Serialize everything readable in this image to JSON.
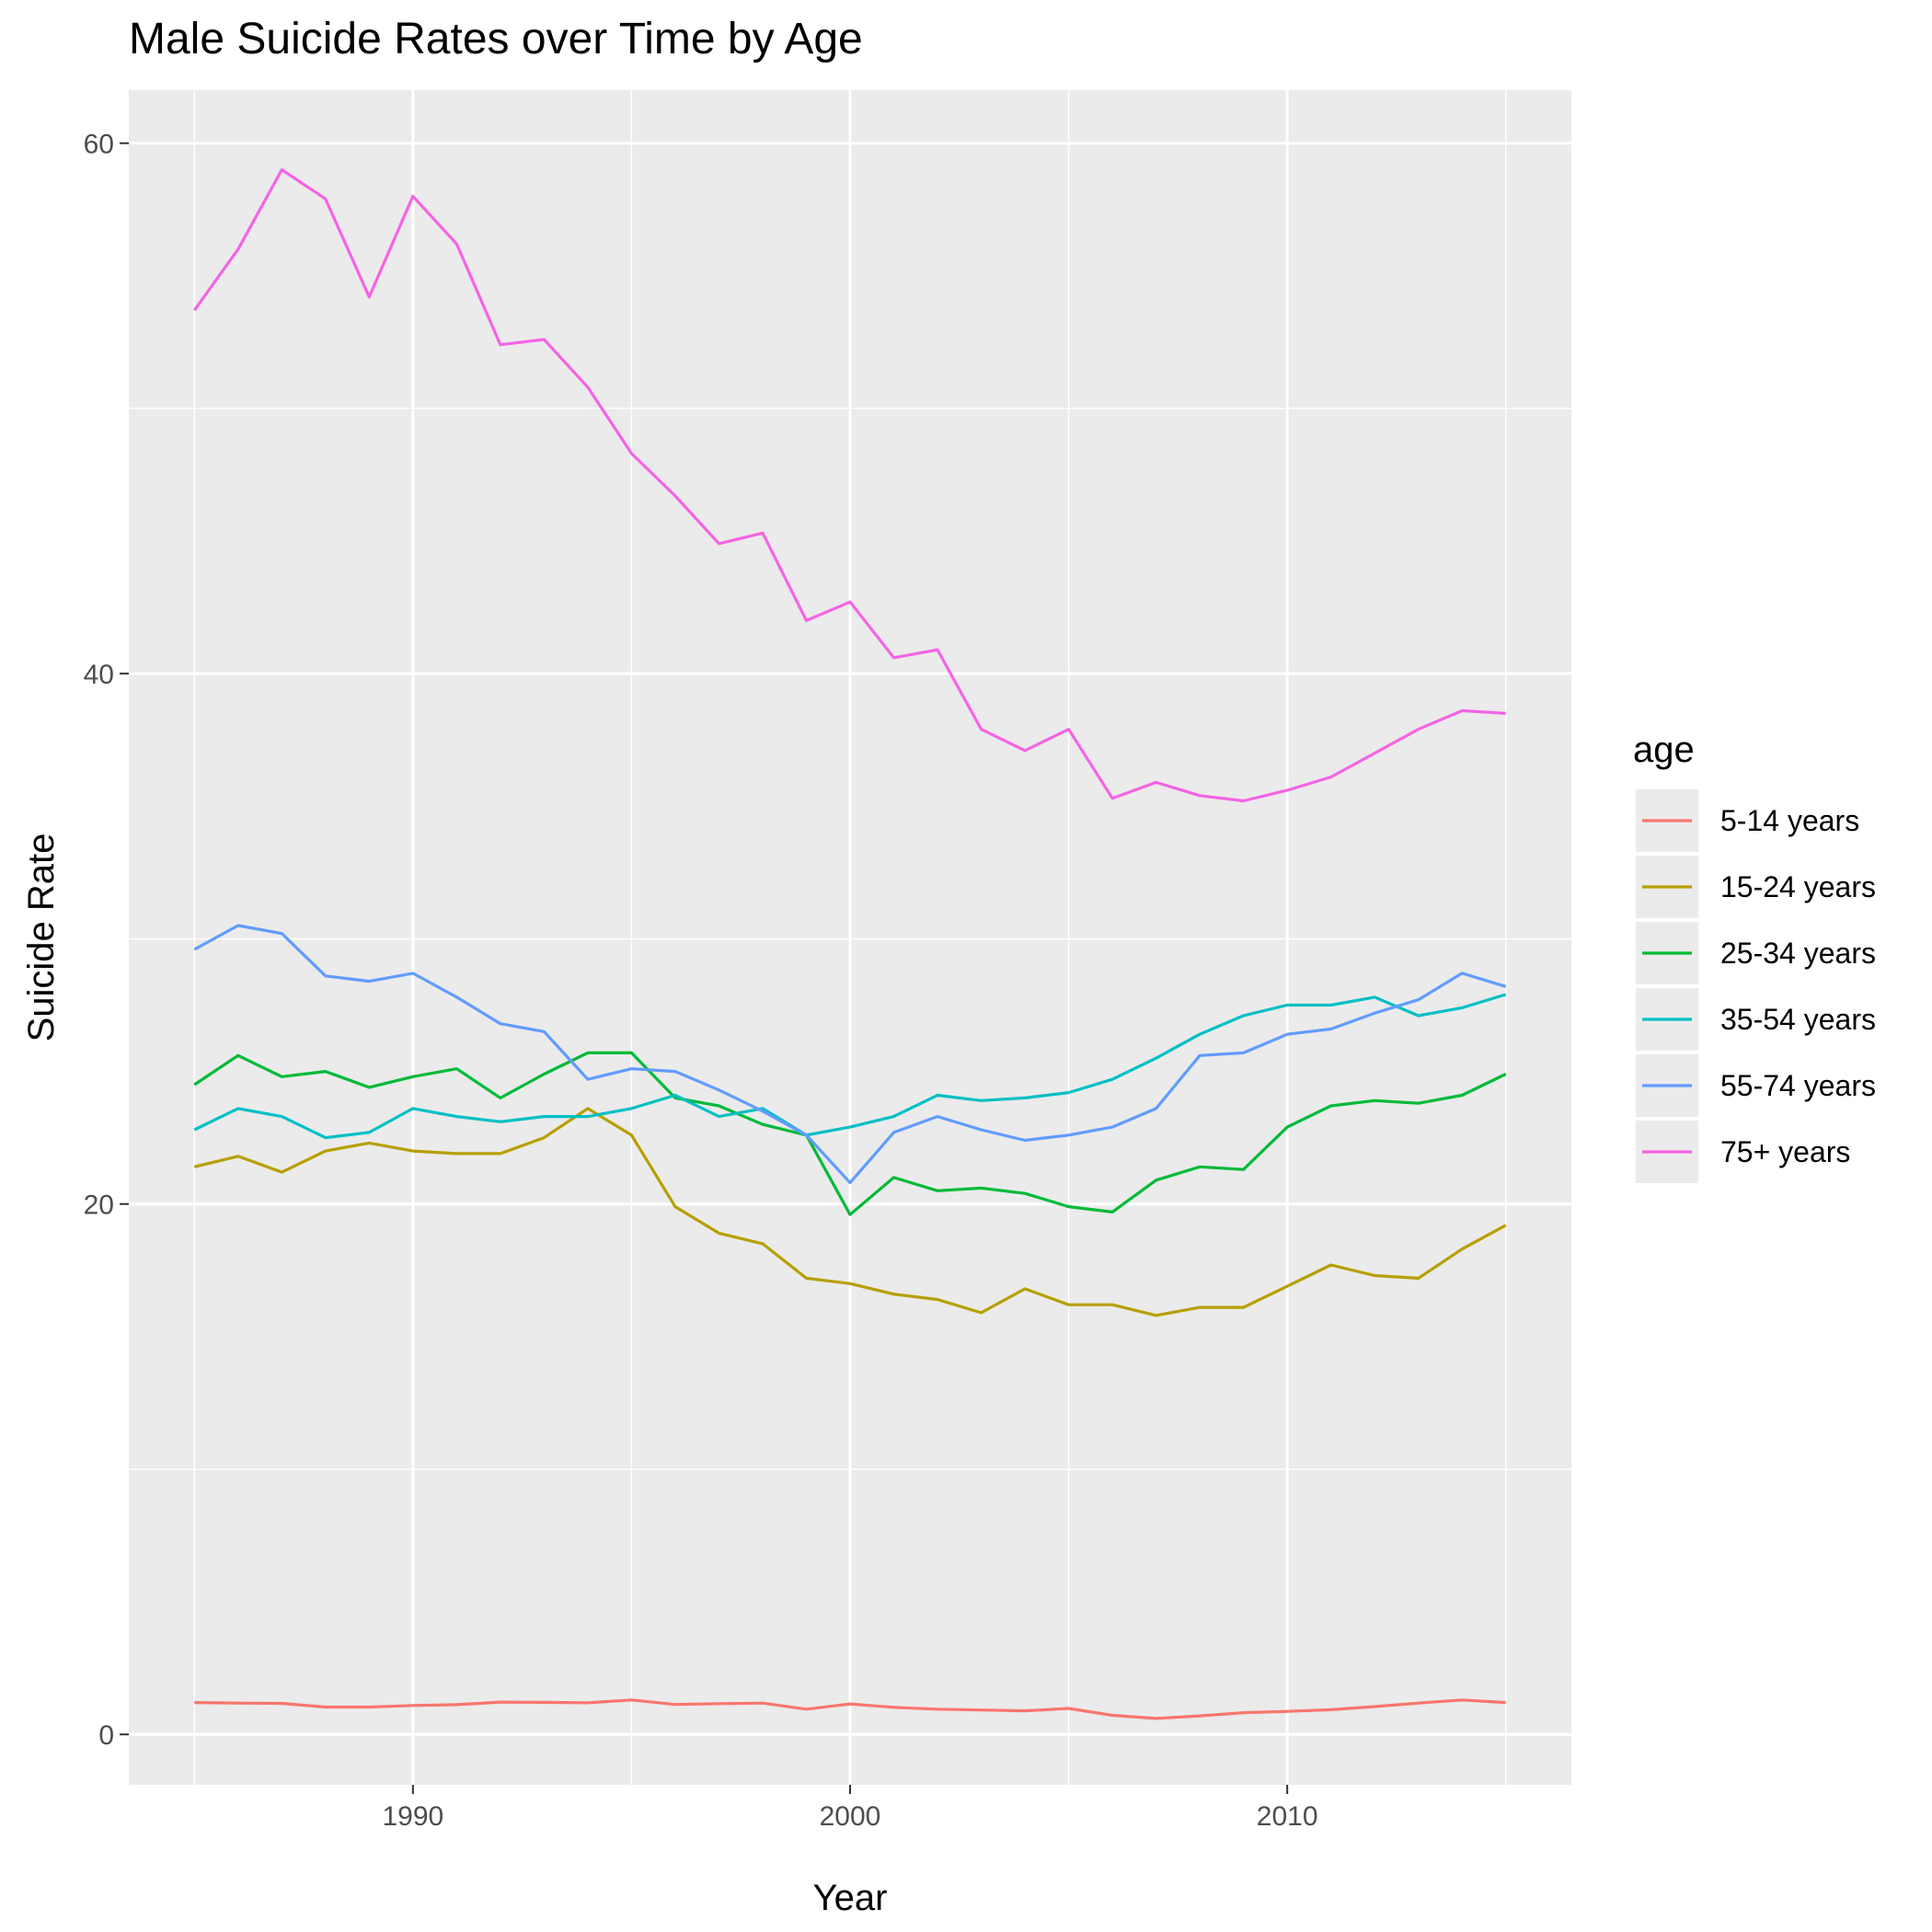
{
  "chart_data": {
    "type": "line",
    "title": "Male Suicide Rates over Time by Age",
    "xlabel": "Year",
    "ylabel": "Suicide Rate",
    "xlim": [
      1983.5,
      2016.5
    ],
    "ylim": [
      -1.9,
      62.0
    ],
    "x_ticks": [
      1990,
      2000,
      2010
    ],
    "y_ticks": [
      0,
      20,
      40,
      60
    ],
    "grid": true,
    "legend": {
      "title": "age",
      "position": "right"
    },
    "x": [
      1985,
      1986,
      1987,
      1988,
      1989,
      1990,
      1991,
      1992,
      1993,
      1994,
      1995,
      1996,
      1997,
      1998,
      1999,
      2000,
      2001,
      2002,
      2003,
      2004,
      2005,
      2006,
      2007,
      2008,
      2009,
      2010,
      2011,
      2012,
      2013,
      2014,
      2015
    ],
    "series": [
      {
        "name": "5-14 years",
        "color": "#F8766D",
        "values": [
          1.2,
          1.18,
          1.17,
          1.03,
          1.03,
          1.09,
          1.12,
          1.22,
          1.21,
          1.19,
          1.3,
          1.13,
          1.16,
          1.18,
          0.95,
          1.15,
          1.02,
          0.95,
          0.92,
          0.89,
          0.98,
          0.72,
          0.6,
          0.7,
          0.82,
          0.87,
          0.93,
          1.05,
          1.18,
          1.3,
          1.2
        ]
      },
      {
        "name": "15-24 years",
        "color": "#B79F00",
        "values": [
          21.4,
          21.8,
          21.2,
          22.0,
          22.3,
          22.0,
          21.9,
          21.9,
          22.5,
          23.6,
          22.6,
          19.9,
          18.9,
          18.5,
          17.2,
          17.0,
          16.6,
          16.4,
          15.9,
          16.8,
          16.2,
          16.2,
          15.8,
          16.1,
          16.1,
          16.9,
          17.7,
          17.3,
          17.2,
          18.3,
          19.2
        ]
      },
      {
        "name": "25-34 years",
        "color": "#00BA38",
        "values": [
          24.5,
          25.6,
          24.8,
          25.0,
          24.4,
          24.8,
          25.1,
          24.0,
          24.9,
          25.7,
          25.7,
          24.0,
          23.7,
          23.0,
          22.6,
          19.6,
          21.0,
          20.5,
          20.6,
          20.4,
          19.9,
          19.7,
          20.9,
          21.4,
          21.3,
          22.9,
          23.7,
          23.9,
          23.8,
          24.1,
          24.9
        ]
      },
      {
        "name": "35-54 years",
        "color": "#00BFC4",
        "values": [
          22.8,
          23.6,
          23.3,
          22.5,
          22.7,
          23.6,
          23.3,
          23.1,
          23.3,
          23.3,
          23.6,
          24.1,
          23.3,
          23.6,
          22.6,
          22.9,
          23.3,
          24.1,
          23.9,
          24.0,
          24.2,
          24.7,
          25.5,
          26.4,
          27.1,
          27.5,
          27.5,
          27.8,
          27.1,
          27.4,
          27.9
        ]
      },
      {
        "name": "55-74 years",
        "color": "#619CFF",
        "values": [
          29.6,
          30.5,
          30.2,
          28.6,
          28.4,
          28.7,
          27.8,
          26.8,
          26.5,
          24.7,
          25.1,
          25.0,
          24.3,
          23.5,
          22.6,
          20.8,
          22.7,
          23.3,
          22.8,
          22.4,
          22.6,
          22.9,
          23.6,
          25.6,
          25.7,
          26.4,
          26.6,
          27.2,
          27.7,
          28.7,
          28.2
        ]
      },
      {
        "name": "75+ years",
        "color": "#F564E3",
        "values": [
          53.7,
          56.0,
          59.0,
          57.9,
          54.2,
          58.0,
          56.2,
          52.4,
          52.6,
          50.8,
          48.3,
          46.7,
          44.9,
          45.3,
          42.0,
          42.7,
          40.6,
          40.9,
          37.9,
          37.1,
          37.9,
          35.3,
          35.9,
          35.4,
          35.2,
          35.6,
          36.1,
          37.0,
          37.9,
          38.6,
          38.5
        ]
      }
    ]
  }
}
